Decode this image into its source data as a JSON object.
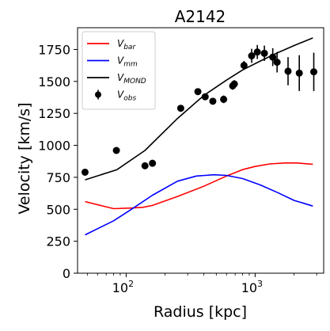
{
  "chart_data": {
    "type": "line",
    "title": "A2142",
    "xlabel": "Radius [kpc]",
    "ylabel": "Velocity [km/s]",
    "xscale": "log",
    "xlim": [
      42,
      3400
    ],
    "ylim": [
      0,
      1920
    ],
    "xticks": [
      {
        "value": 100,
        "base": "10",
        "exp": "2"
      },
      {
        "value": 1000,
        "base": "10",
        "exp": "3"
      }
    ],
    "yticks": [
      0,
      250,
      500,
      750,
      1000,
      1250,
      1500,
      1750
    ],
    "ytick_labels": [
      "0",
      "250",
      "500",
      "750",
      "1000",
      "1250",
      "1500",
      "1750"
    ],
    "grid": false,
    "legend_position": "top-left",
    "legend": [
      {
        "key": "vbar",
        "base": "V",
        "sub": "bar",
        "kind": "line",
        "color": "#ff0000"
      },
      {
        "key": "vmm",
        "base": "V",
        "sub": "mm",
        "kind": "line",
        "color": "#0000ff"
      },
      {
        "key": "vmond",
        "base": "V",
        "sub": "MOND",
        "kind": "line",
        "color": "#000000"
      },
      {
        "key": "vobs",
        "base": "V",
        "sub": "obs",
        "kind": "errorbar",
        "color": "#000000"
      }
    ],
    "series": [
      {
        "key": "vbar",
        "color": "#ff0000",
        "x": [
          48,
          80,
          110,
          135,
          160,
          250,
          400,
          600,
          800,
          1000,
          1300,
          1700,
          2100,
          2800
        ],
        "y": [
          560,
          505,
          510,
          515,
          530,
          600,
          680,
          760,
          810,
          835,
          855,
          862,
          862,
          852
        ]
      },
      {
        "key": "vmm",
        "color": "#0000ff",
        "x": [
          48,
          80,
          110,
          160,
          250,
          350,
          480,
          600,
          800,
          1100,
          1500,
          2000,
          2800
        ],
        "y": [
          300,
          410,
          500,
          610,
          720,
          760,
          770,
          765,
          740,
          690,
          630,
          570,
          525
        ]
      },
      {
        "key": "vmond",
        "color": "#000000",
        "x": [
          48,
          85,
          140,
          250,
          400,
          600,
          800,
          1100,
          1500,
          2000,
          2800
        ],
        "y": [
          730,
          810,
          960,
          1210,
          1390,
          1510,
          1590,
          1660,
          1725,
          1780,
          1840
        ]
      }
    ],
    "points": {
      "key": "vobs",
      "color": "#000000",
      "x": [
        48,
        84,
        140,
        160,
        265,
        360,
        410,
        470,
        570,
        670,
        690,
        820,
        940,
        1040,
        1180,
        1370,
        1480,
        1800,
        2200,
        2850
      ],
      "y": [
        790,
        960,
        840,
        860,
        1290,
        1420,
        1380,
        1345,
        1360,
        1465,
        1480,
        1625,
        1700,
        1730,
        1720,
        1690,
        1650,
        1580,
        1565,
        1575
      ],
      "err": [
        25,
        20,
        20,
        20,
        25,
        25,
        25,
        25,
        30,
        30,
        30,
        35,
        55,
        55,
        60,
        70,
        80,
        110,
        140,
        150
      ]
    }
  }
}
